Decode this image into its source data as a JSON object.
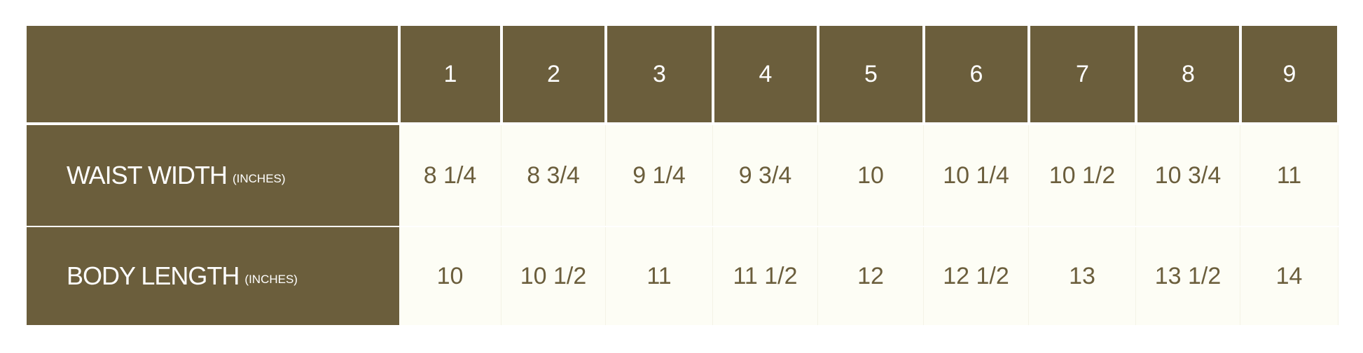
{
  "colors": {
    "header_bg": "#6b5e3c",
    "body_bg": "#fdfdf5",
    "value_text": "#6b5e3c",
    "label_text": "#ffffff"
  },
  "sizes": [
    "1",
    "2",
    "3",
    "4",
    "5",
    "6",
    "7",
    "8",
    "9"
  ],
  "rows": [
    {
      "label": "WAIST WIDTH",
      "unit": "(INCHES)",
      "values": [
        "8 1/4",
        "8 3/4",
        "9 1/4",
        "9 3/4",
        "10",
        "10 1/4",
        "10 1/2",
        "10 3/4",
        "11"
      ]
    },
    {
      "label": "BODY LENGTH",
      "unit": "(INCHES)",
      "values": [
        "10",
        "10 1/2",
        "11",
        "11 1/2",
        "12",
        "12 1/2",
        "13",
        "13 1/2",
        "14"
      ]
    }
  ]
}
